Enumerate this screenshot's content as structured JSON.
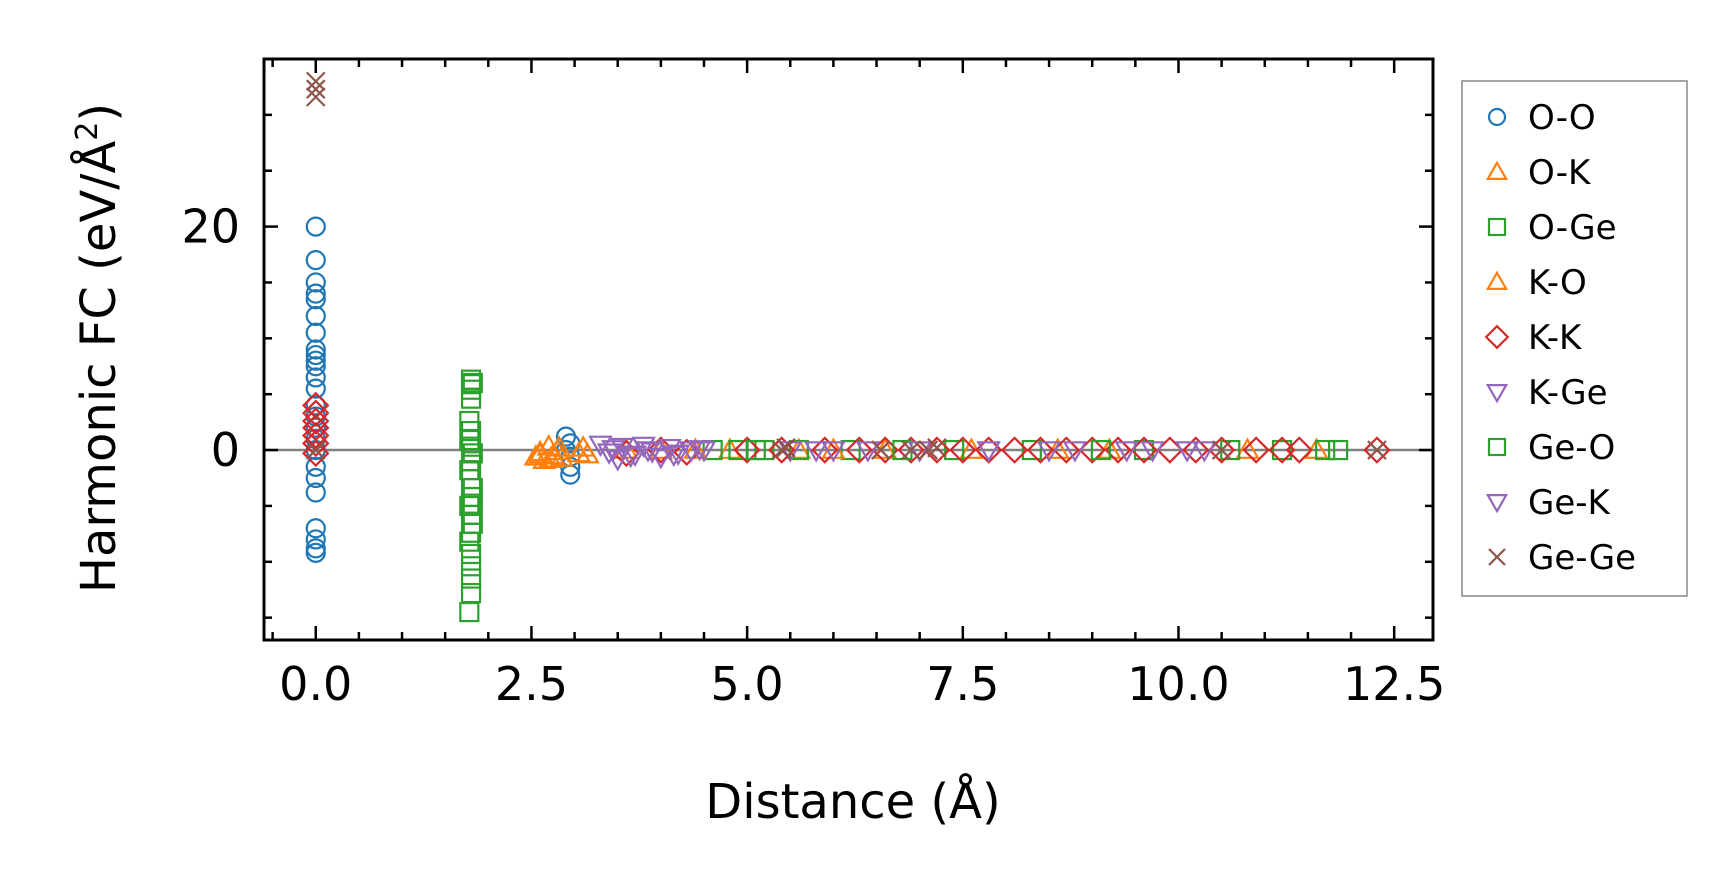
{
  "chart_data": {
    "type": "scatter",
    "xlabel": "Distance (Å)",
    "ylabel_main": "Harmonic FC (eV/Å",
    "ylabel_sup": "2",
    "ylabel_close": ")",
    "xlim": [
      -0.6,
      12.95
    ],
    "ylim": [
      -17,
      35
    ],
    "x_ticks": [
      0.0,
      2.5,
      5.0,
      7.5,
      10.0,
      12.5
    ],
    "x_tick_labels": [
      "0.0",
      "2.5",
      "5.0",
      "7.5",
      "10.0",
      "12.5"
    ],
    "y_ticks": [
      0,
      20
    ],
    "y_tick_labels": [
      "0",
      "20"
    ],
    "y_minor_step": 5,
    "x_minor_step": 0.5,
    "zero_line": true,
    "grid": false,
    "legend_placement": "outside-right",
    "series": [
      {
        "name": "O-O",
        "color": "#1f77b4",
        "marker": "circle",
        "points": [
          [
            0,
            20
          ],
          [
            0,
            17
          ],
          [
            0,
            15
          ],
          [
            0,
            14
          ],
          [
            0,
            13.5
          ],
          [
            0,
            12
          ],
          [
            0,
            10.5
          ],
          [
            0,
            9
          ],
          [
            0,
            8.5
          ],
          [
            0,
            8
          ],
          [
            0,
            7.5
          ],
          [
            0,
            6.5
          ],
          [
            0,
            5.5
          ],
          [
            0,
            4
          ],
          [
            0,
            3
          ],
          [
            0,
            2
          ],
          [
            0,
            1
          ],
          [
            0,
            0
          ],
          [
            0,
            -1.5
          ],
          [
            0,
            -2.5
          ],
          [
            0,
            -3.8
          ],
          [
            0,
            -7
          ],
          [
            0,
            -8
          ],
          [
            0,
            -8.8
          ],
          [
            0,
            -9.2
          ],
          [
            2.9,
            1.2
          ],
          [
            2.95,
            0.6
          ],
          [
            2.9,
            0
          ],
          [
            2.95,
            -0.6
          ],
          [
            2.95,
            -1.5
          ],
          [
            2.95,
            -2.2
          ]
        ]
      },
      {
        "name": "O-K",
        "color": "#ff7f0e",
        "marker": "triangle-up",
        "points": [
          [
            2.55,
            -0.6
          ],
          [
            2.6,
            -0.2
          ],
          [
            2.65,
            -0.9
          ],
          [
            2.7,
            0.3
          ],
          [
            2.75,
            -0.5
          ],
          [
            2.8,
            -0.1
          ],
          [
            2.85,
            -0.7
          ],
          [
            3.05,
            -0.3
          ],
          [
            3.1,
            0.2
          ],
          [
            3.6,
            0
          ],
          [
            4.0,
            0
          ],
          [
            4.8,
            0
          ],
          [
            5.6,
            0
          ],
          [
            6.6,
            0
          ],
          [
            7.6,
            0
          ],
          [
            8.6,
            0
          ],
          [
            10.8,
            0
          ],
          [
            11.6,
            0
          ]
        ]
      },
      {
        "name": "O-Ge",
        "color": "#2ca02c",
        "marker": "square",
        "points": [
          [
            1.8,
            6.3
          ],
          [
            1.8,
            5.9
          ],
          [
            1.8,
            5.4
          ],
          [
            1.78,
            2.6
          ],
          [
            1.8,
            1.7
          ],
          [
            1.78,
            0.9
          ],
          [
            1.8,
            0.3
          ],
          [
            1.82,
            -0.3
          ],
          [
            1.8,
            -1
          ],
          [
            1.78,
            -1.8
          ],
          [
            1.8,
            -2.6
          ],
          [
            1.82,
            -3.4
          ],
          [
            1.8,
            -4.2
          ],
          [
            1.78,
            -5
          ],
          [
            1.8,
            -5.8
          ],
          [
            1.82,
            -6.6
          ],
          [
            1.8,
            -7.4
          ],
          [
            1.78,
            -8.2
          ],
          [
            1.8,
            -9.3
          ],
          [
            1.8,
            -10.4
          ],
          [
            1.8,
            -12.8
          ],
          [
            1.78,
            -14.5
          ],
          [
            4.6,
            0
          ],
          [
            4.9,
            0
          ],
          [
            5.2,
            0
          ],
          [
            5.6,
            0
          ],
          [
            6.2,
            0
          ],
          [
            7.4,
            0
          ],
          [
            8.3,
            0
          ],
          [
            9.6,
            0
          ],
          [
            10.6,
            0
          ],
          [
            11.2,
            0
          ],
          [
            11.7,
            0
          ],
          [
            11.85,
            0
          ]
        ]
      },
      {
        "name": "K-O",
        "color": "#ff7f0e",
        "marker": "triangle-up",
        "points": [
          [
            2.6,
            -0.4
          ],
          [
            2.72,
            -0.8
          ],
          [
            2.82,
            0.2
          ],
          [
            3.15,
            -0.4
          ],
          [
            4.4,
            0
          ],
          [
            6.0,
            0
          ],
          [
            9.2,
            0
          ]
        ]
      },
      {
        "name": "K-K",
        "color": "#d62728",
        "marker": "diamond",
        "points": [
          [
            0,
            4
          ],
          [
            0,
            3.3
          ],
          [
            0,
            2.6
          ],
          [
            0,
            2
          ],
          [
            0,
            1.3
          ],
          [
            0,
            0.6
          ],
          [
            0,
            -0.3
          ],
          [
            3.6,
            -0.3
          ],
          [
            4.0,
            0
          ],
          [
            4.3,
            -0.2
          ],
          [
            5.0,
            0
          ],
          [
            5.4,
            0
          ],
          [
            5.9,
            0
          ],
          [
            6.3,
            0
          ],
          [
            6.6,
            0
          ],
          [
            6.9,
            0
          ],
          [
            7.2,
            0
          ],
          [
            7.5,
            0
          ],
          [
            7.8,
            0
          ],
          [
            8.1,
            0
          ],
          [
            8.4,
            0
          ],
          [
            8.7,
            0
          ],
          [
            9.0,
            0
          ],
          [
            9.3,
            0
          ],
          [
            9.6,
            0
          ],
          [
            9.9,
            0
          ],
          [
            10.2,
            0
          ],
          [
            10.5,
            0
          ],
          [
            10.9,
            0
          ],
          [
            11.2,
            0
          ],
          [
            11.4,
            0
          ],
          [
            12.3,
            0
          ]
        ]
      },
      {
        "name": "K-Ge",
        "color": "#9467bd",
        "marker": "triangle-down",
        "points": [
          [
            3.3,
            0.5
          ],
          [
            3.4,
            -0.2
          ],
          [
            3.5,
            -0.8
          ],
          [
            3.55,
            0.3
          ],
          [
            3.7,
            -0.4
          ],
          [
            3.8,
            0.4
          ],
          [
            3.9,
            -0.1
          ],
          [
            4.0,
            -0.6
          ],
          [
            4.1,
            0.2
          ],
          [
            4.2,
            -0.3
          ],
          [
            4.35,
            0
          ],
          [
            4.5,
            0
          ],
          [
            5.5,
            0
          ],
          [
            6.0,
            0
          ],
          [
            6.4,
            0
          ],
          [
            7.8,
            0
          ],
          [
            8.8,
            0
          ],
          [
            9.7,
            0
          ],
          [
            10.3,
            0
          ]
        ]
      },
      {
        "name": "Ge-O",
        "color": "#2ca02c",
        "marker": "square",
        "points": [
          [
            1.82,
            6.0
          ],
          [
            1.8,
            4.6
          ],
          [
            1.82,
            -4.8
          ],
          [
            1.8,
            -11.5
          ],
          [
            5.1,
            0
          ],
          [
            6.8,
            0
          ],
          [
            9.1,
            0
          ]
        ]
      },
      {
        "name": "Ge-K",
        "color": "#9467bd",
        "marker": "triangle-down",
        "points": [
          [
            3.45,
            0.1
          ],
          [
            3.65,
            -0.5
          ],
          [
            3.85,
            0
          ],
          [
            4.15,
            -0.4
          ],
          [
            4.45,
            0.1
          ],
          [
            5.8,
            0
          ],
          [
            7.0,
            0
          ],
          [
            8.5,
            0
          ],
          [
            9.4,
            0
          ],
          [
            10.1,
            0
          ]
        ]
      },
      {
        "name": "Ge-Ge",
        "color": "#8c564b",
        "marker": "x",
        "points": [
          [
            0,
            33
          ],
          [
            0,
            32.3
          ],
          [
            0,
            31.6
          ],
          [
            0,
            0
          ],
          [
            5.4,
            0
          ],
          [
            5.45,
            0.2
          ],
          [
            6.55,
            0
          ],
          [
            6.9,
            0
          ],
          [
            7.1,
            0
          ],
          [
            7.2,
            0.2
          ],
          [
            10.5,
            0
          ],
          [
            12.3,
            0
          ]
        ]
      }
    ]
  }
}
